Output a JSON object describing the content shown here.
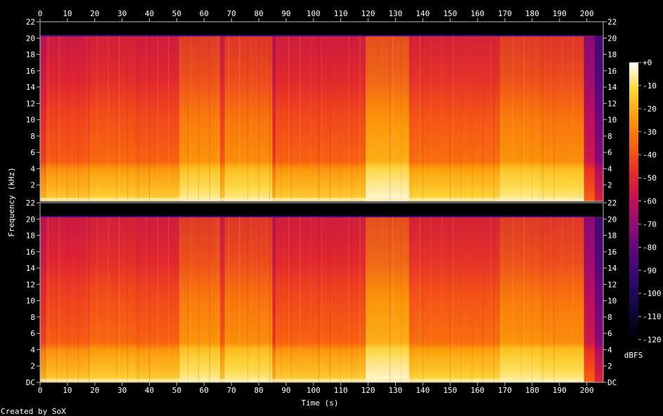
{
  "chart_data": {
    "type": "heatmap",
    "title": "",
    "xlabel": "Time (s)",
    "ylabel": "Frequency (kHz)",
    "xlim": [
      0,
      206
    ],
    "ylim": [
      0,
      22
    ],
    "x_ticks": [
      "0",
      "10",
      "20",
      "30",
      "40",
      "50",
      "60",
      "70",
      "80",
      "90",
      "100",
      "110",
      "120",
      "130",
      "140",
      "150",
      "160",
      "170",
      "180",
      "190",
      "200"
    ],
    "y_ticks": [
      "DC",
      "2",
      "4",
      "6",
      "8",
      "10",
      "12",
      "14",
      "16",
      "18",
      "20",
      "22"
    ],
    "channels": 2,
    "colorbar": {
      "label": "dBFS",
      "range": [
        -120,
        0
      ],
      "ticks": [
        "+0",
        "-10",
        "-20",
        "-30",
        "-40",
        "-50",
        "-60",
        "-70",
        "-80",
        "-90",
        "-100",
        "-110",
        "-120"
      ]
    },
    "segments": [
      {
        "start": 0,
        "end": 2,
        "level": 0.55
      },
      {
        "start": 2,
        "end": 18,
        "level": 0.64
      },
      {
        "start": 18,
        "end": 35,
        "level": 0.68
      },
      {
        "start": 35,
        "end": 51,
        "level": 0.66
      },
      {
        "start": 51,
        "end": 66,
        "level": 0.82
      },
      {
        "start": 66,
        "end": 67.5,
        "level": 0.62
      },
      {
        "start": 67.5,
        "end": 85,
        "level": 0.8
      },
      {
        "start": 85,
        "end": 86,
        "level": 0.5
      },
      {
        "start": 86,
        "end": 102,
        "level": 0.66
      },
      {
        "start": 102,
        "end": 119,
        "level": 0.66
      },
      {
        "start": 119,
        "end": 135,
        "level": 0.9
      },
      {
        "start": 135,
        "end": 152,
        "level": 0.7
      },
      {
        "start": 152,
        "end": 168,
        "level": 0.7
      },
      {
        "start": 168,
        "end": 183,
        "level": 0.82
      },
      {
        "start": 183,
        "end": 199,
        "level": 0.8
      },
      {
        "start": 199,
        "end": 203,
        "level": 0.35
      },
      {
        "start": 203,
        "end": 206,
        "level": 0.1
      }
    ],
    "cutoff_khz": 20.3,
    "grid": false
  },
  "footer": {
    "credit": "Created by SoX"
  }
}
